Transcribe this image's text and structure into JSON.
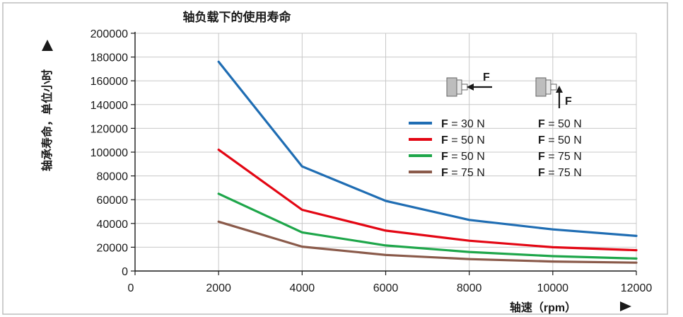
{
  "chart_data": {
    "type": "line",
    "title": "轴负载下的使用寿命",
    "xlabel": "轴速（rpm）",
    "ylabel": "轴承寿命，单位小时",
    "x": [
      2000,
      4000,
      6000,
      8000,
      10000,
      12000
    ],
    "xlim": [
      0,
      12000
    ],
    "ylim": [
      0,
      200000
    ],
    "x_ticks": [
      {
        "value": 0,
        "label": "0"
      },
      {
        "value": 2000,
        "label": "2000"
      },
      {
        "value": 4000,
        "label": "4000"
      },
      {
        "value": 6000,
        "label": "6000"
      },
      {
        "value": 8000,
        "label": "8000"
      },
      {
        "value": 10000,
        "label": "10000"
      },
      {
        "value": 12000,
        "label": "12000"
      }
    ],
    "y_ticks": [
      {
        "value": 0,
        "label": "0"
      },
      {
        "value": 20000,
        "label": "20000"
      },
      {
        "value": 40000,
        "label": "40000"
      },
      {
        "value": 60000,
        "label": "60000"
      },
      {
        "value": 80000,
        "label": "80000"
      },
      {
        "value": 100000,
        "label": "100000"
      },
      {
        "value": 120000,
        "label": "120000"
      },
      {
        "value": 140000,
        "label": "140000"
      },
      {
        "value": 160000,
        "label": "160000"
      },
      {
        "value": 180000,
        "label": "180000"
      },
      {
        "value": 200000,
        "label": "200000"
      }
    ],
    "grid": true,
    "legend_position": "top-right",
    "legend_header_symbol": "F",
    "series": [
      {
        "color": "#1f6db3",
        "axial": "30 N",
        "radial": "50 N",
        "values": [
          176000,
          88000,
          59000,
          43000,
          35000,
          29500
        ]
      },
      {
        "color": "#e30613",
        "axial": "50 N",
        "radial": "50 N",
        "values": [
          102000,
          51500,
          34000,
          25500,
          20000,
          17500
        ]
      },
      {
        "color": "#1ea64a",
        "axial": "50 N",
        "radial": "75 N",
        "values": [
          65000,
          32500,
          21500,
          16000,
          12500,
          10500
        ]
      },
      {
        "color": "#8a5a4a",
        "axial": "75 N",
        "radial": "75 N",
        "values": [
          41500,
          20500,
          13500,
          10000,
          8000,
          7000
        ]
      }
    ]
  }
}
